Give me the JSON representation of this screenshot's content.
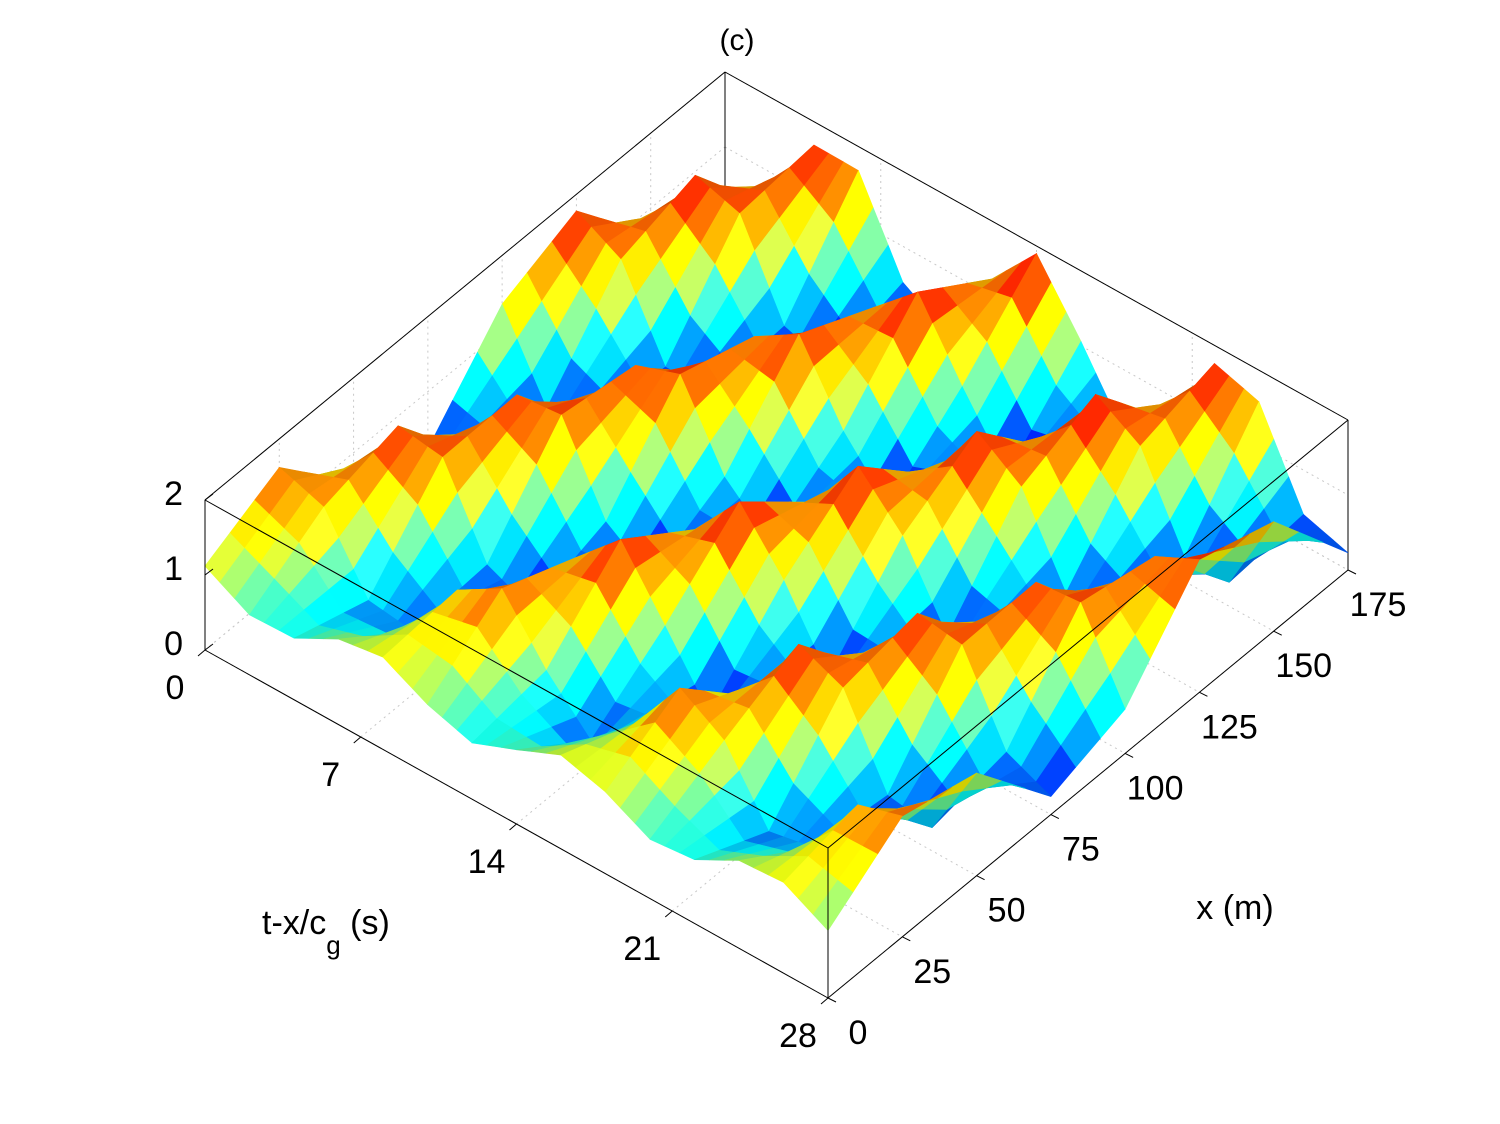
{
  "chart_data": {
    "type": "surface",
    "title": "(c)",
    "t_label": [
      "t-x/c",
      "g",
      " (s)"
    ],
    "x_label": "x (m)",
    "t": [
      0,
      2,
      4,
      6,
      8,
      10,
      12,
      14,
      16,
      18,
      20,
      22,
      24,
      26,
      28
    ],
    "x": [
      0,
      25,
      50,
      75,
      100,
      125,
      150,
      175
    ],
    "z": [
      [
        1.12,
        0.8,
        0.82,
        1.14,
        1.23,
        0.93,
        0.75,
        0.99,
        1.25,
        1.09,
        0.79,
        0.85,
        1.17,
        1.21,
        0.9
      ],
      [
        1.62,
        1.42,
        0.51,
        0.43,
        1.31,
        1.66,
        0.9,
        0.3,
        0.86,
        1.66,
        1.29,
        0.41,
        0.53,
        1.43,
        1.61
      ],
      [
        0.62,
        1.69,
        1.6,
        0.5,
        0.24,
        1.26,
        1.83,
        1.01,
        0.16,
        0.73,
        1.76,
        1.51,
        0.41,
        0.31,
        1.37
      ],
      [
        0.24,
        0.52,
        1.62,
        1.68,
        0.59,
        0.18,
        1.15,
        1.85,
        1.13,
        0.18,
        0.62,
        1.69,
        1.6,
        0.5,
        0.24
      ],
      [
        1.35,
        0.29,
        0.43,
        1.53,
        1.74,
        0.7,
        0.17,
        1.03,
        1.84,
        1.24,
        0.24,
        0.52,
        1.62,
        1.68,
        0.59
      ],
      [
        1.78,
        1.46,
        0.36,
        0.35,
        1.43,
        1.79,
        0.83,
        0.15,
        0.91,
        1.82,
        1.41,
        0.33,
        0.39,
        1.48,
        1.77
      ],
      [
        0.66,
        1.77,
        1.59,
        0.42,
        0.23,
        1.33,
        1.87,
        0.94,
        0.1,
        0.78,
        1.83,
        1.47,
        0.32,
        0.32,
        1.46
      ],
      [
        0.16,
        0.55,
        1.69,
        1.68,
        0.52,
        0.17,
        1.23,
        1.9,
        1.06,
        0.12,
        0.68,
        1.76,
        1.58,
        0.41,
        0.23
      ]
    ],
    "tlim": [
      0,
      28
    ],
    "tticks": [
      0,
      7,
      14,
      21,
      28
    ],
    "xlim": [
      0,
      175
    ],
    "xticks": [
      0,
      25,
      50,
      75,
      100,
      125,
      150,
      175
    ],
    "zlim": [
      0,
      2
    ],
    "zticks": [
      0,
      1,
      2
    ],
    "colormap": "jet",
    "grid": true
  }
}
